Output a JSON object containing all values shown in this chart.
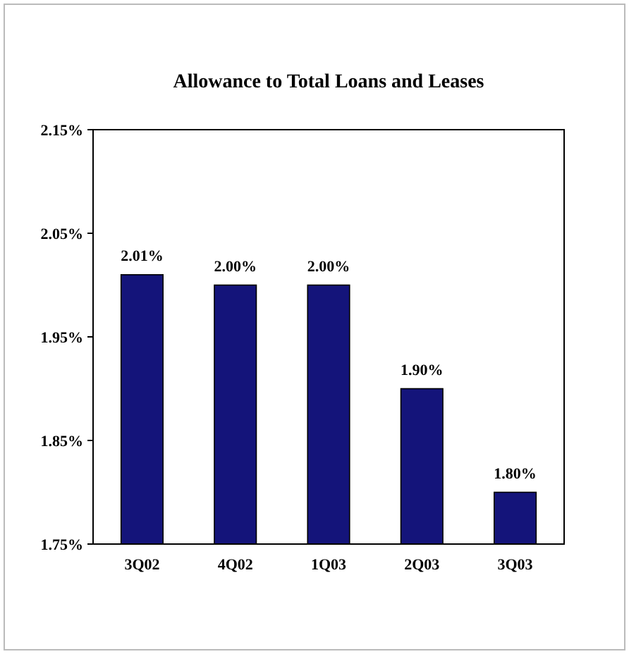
{
  "chart_data": {
    "type": "bar",
    "title": "Allowance to Total Loans and Leases",
    "categories": [
      "3Q02",
      "4Q02",
      "1Q03",
      "2Q03",
      "3Q03"
    ],
    "values": [
      2.01,
      2.0,
      2.0,
      1.9,
      1.8
    ],
    "value_labels": [
      "2.01%",
      "2.00%",
      "2.00%",
      "1.90%",
      "1.80%"
    ],
    "color": "#14147a",
    "ylim": [
      1.75,
      2.15
    ],
    "yticks": [
      {
        "value": 1.75,
        "label": "1.75%"
      },
      {
        "value": 1.85,
        "label": "1.85%"
      },
      {
        "value": 1.95,
        "label": "1.95%"
      },
      {
        "value": 2.05,
        "label": "2.05%"
      },
      {
        "value": 2.15,
        "label": "2.15%"
      }
    ],
    "grid": false
  }
}
